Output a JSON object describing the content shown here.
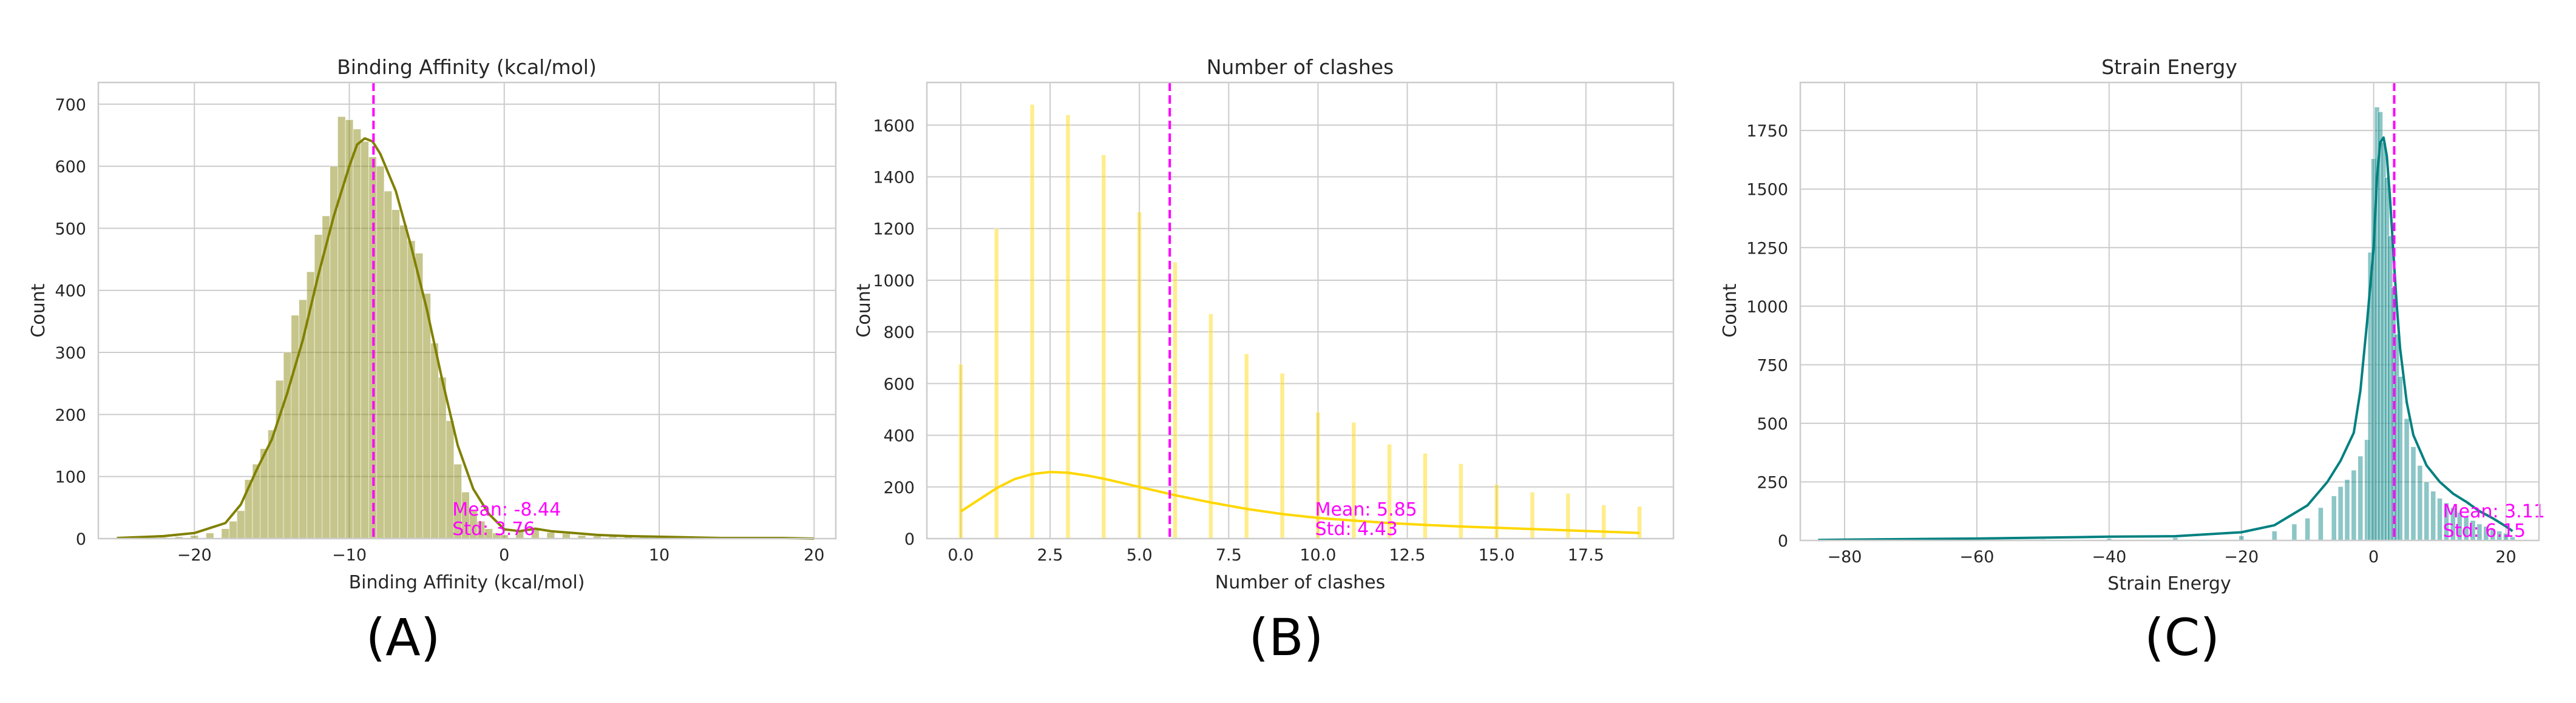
{
  "colors": {
    "mean_line": "#ff00ff",
    "grid": "#cccccc",
    "frame": "#cccccc",
    "text": "#262626"
  },
  "chart_data": [
    {
      "type": "histogram",
      "caption": "(A)",
      "title": "Binding Affinity (kcal/mol)",
      "xlabel": "Binding Affinity (kcal/mol)",
      "ylabel": "Count",
      "xlim": [
        -26.2,
        21.4
      ],
      "ylim": [
        0,
        735
      ],
      "xticks": [
        -20,
        -10,
        0,
        10,
        20
      ],
      "xtick_labels": [
        "−20",
        "−10",
        "0",
        "10",
        "20"
      ],
      "yticks": [
        0,
        100,
        200,
        300,
        400,
        500,
        600,
        700
      ],
      "ytick_labels": [
        "0",
        "100",
        "200",
        "300",
        "400",
        "500",
        "600",
        "700"
      ],
      "grid": true,
      "bar_color": "#808000",
      "kde_color": "#808000",
      "bins": {
        "centers": [
          -25,
          -24,
          -23,
          -22,
          -21,
          -20,
          -19,
          -18,
          -17.5,
          -17,
          -16.5,
          -16,
          -15.5,
          -15,
          -14.5,
          -14,
          -13.5,
          -13,
          -12.5,
          -12,
          -11.5,
          -11,
          -10.5,
          -10,
          -9.5,
          -9,
          -8.5,
          -8,
          -7.5,
          -7,
          -6.5,
          -6,
          -5.5,
          -5,
          -4.5,
          -4,
          -3.5,
          -3,
          -2.5,
          -2,
          -1.5,
          -1,
          -0.5,
          0,
          1,
          2,
          3,
          4,
          5,
          6,
          7,
          8,
          9,
          10,
          11,
          12,
          13,
          14,
          15,
          16,
          17,
          18,
          19,
          20
        ],
        "values": [
          1,
          1,
          1,
          2,
          3,
          5,
          9,
          16,
          28,
          45,
          95,
          120,
          145,
          175,
          255,
          300,
          360,
          385,
          430,
          490,
          520,
          600,
          680,
          675,
          660,
          640,
          615,
          600,
          560,
          530,
          505,
          480,
          460,
          395,
          315,
          260,
          190,
          120,
          75,
          45,
          28,
          16,
          9,
          6,
          12,
          14,
          10,
          8,
          5,
          4,
          3,
          3,
          2,
          2,
          2,
          1,
          1,
          1,
          1,
          1,
          1,
          1,
          1,
          1
        ],
        "width": 0.5
      },
      "kde": {
        "x": [
          -25,
          -22,
          -20,
          -18,
          -17,
          -16,
          -15,
          -14,
          -13,
          -12,
          -11,
          -10,
          -9.5,
          -9,
          -8.5,
          -8,
          -7,
          -6,
          -5,
          -4,
          -3,
          -2,
          -1,
          0,
          1,
          2,
          3,
          4,
          6,
          8,
          10,
          14,
          18,
          20
        ],
        "y": [
          1,
          4,
          9,
          25,
          55,
          110,
          160,
          235,
          320,
          425,
          520,
          600,
          635,
          645,
          640,
          620,
          560,
          470,
          370,
          255,
          150,
          80,
          40,
          15,
          12,
          16,
          12,
          10,
          6,
          4,
          3,
          1,
          1,
          0
        ]
      },
      "mean": -8.44,
      "mean_text": "Mean: -8.44",
      "std_text": "Std: 3.76"
    },
    {
      "type": "histogram",
      "caption": "(B)",
      "title": "Number of clashes",
      "xlabel": "Number of clashes",
      "ylabel": "Count",
      "xlim": [
        -0.95,
        19.95
      ],
      "ylim": [
        0,
        1765
      ],
      "xticks": [
        0.0,
        2.5,
        5.0,
        7.5,
        10.0,
        12.5,
        15.0,
        17.5
      ],
      "xtick_labels": [
        "0.0",
        "2.5",
        "5.0",
        "7.5",
        "10.0",
        "12.5",
        "15.0",
        "17.5"
      ],
      "yticks": [
        0,
        200,
        400,
        600,
        800,
        1000,
        1200,
        1400,
        1600
      ],
      "ytick_labels": [
        "0",
        "200",
        "400",
        "600",
        "800",
        "1000",
        "1200",
        "1400",
        "1600"
      ],
      "grid": true,
      "bar_color": "#ffd700",
      "kde_color": "#ffd700",
      "bins": {
        "centers": [
          0,
          1,
          2,
          3,
          4,
          5,
          6,
          7,
          8,
          9,
          10,
          11,
          12,
          13,
          14,
          15,
          16,
          17,
          18,
          19
        ],
        "values": [
          675,
          1200,
          1680,
          1640,
          1485,
          1265,
          1070,
          870,
          715,
          640,
          490,
          450,
          365,
          330,
          290,
          210,
          180,
          175,
          130,
          125
        ],
        "width": 0.12
      },
      "kde": {
        "x": [
          0,
          0.5,
          1,
          1.5,
          2,
          2.5,
          3,
          3.5,
          4,
          5,
          6,
          7,
          8,
          9,
          10,
          11,
          12,
          13,
          14,
          15,
          16,
          17,
          18,
          19
        ],
        "y": [
          105,
          150,
          195,
          230,
          250,
          258,
          255,
          245,
          232,
          200,
          168,
          140,
          115,
          95,
          80,
          70,
          60,
          53,
          47,
          42,
          37,
          32,
          27,
          22
        ]
      },
      "mean": 5.85,
      "mean_text": "Mean: 5.85",
      "std_text": "Std: 4.43"
    },
    {
      "type": "histogram",
      "caption": "(C)",
      "title": "Strain Energy",
      "xlabel": "Strain Energy",
      "ylabel": "Count",
      "xlim": [
        -86.7,
        25.0
      ],
      "ylim": [
        0,
        1955
      ],
      "xticks": [
        -80,
        -60,
        -40,
        -20,
        0,
        20
      ],
      "xtick_labels": [
        "−80",
        "−60",
        "−40",
        "−20",
        "0",
        "20"
      ],
      "yticks": [
        0,
        250,
        500,
        750,
        1000,
        1250,
        1500,
        1750
      ],
      "ytick_labels": [
        "0",
        "250",
        "500",
        "750",
        "1000",
        "1250",
        "1500",
        "1750"
      ],
      "grid": true,
      "bar_color": "#008080",
      "kde_color": "#008080",
      "bins": {
        "centers": [
          -82,
          -70,
          -60,
          -50,
          -40,
          -30,
          -20,
          -15,
          -12,
          -10,
          -8,
          -6,
          -5,
          -4,
          -3,
          -2,
          -1,
          -0.5,
          0,
          0.5,
          1,
          1.5,
          2,
          2.5,
          3,
          3.5,
          4,
          5,
          6,
          7,
          8,
          9,
          10,
          11,
          12,
          13,
          14,
          15,
          16,
          17,
          18,
          19,
          20,
          21
        ],
        "values": [
          3,
          2,
          3,
          5,
          8,
          12,
          20,
          40,
          70,
          95,
          140,
          190,
          230,
          260,
          300,
          360,
          430,
          1230,
          1630,
          1850,
          1830,
          1700,
          1550,
          1300,
          1080,
          880,
          700,
          520,
          400,
          320,
          250,
          210,
          180,
          160,
          140,
          120,
          100,
          85,
          70,
          60,
          50,
          40,
          30,
          15
        ],
        "width": 0.75
      },
      "kde": {
        "x": [
          -84,
          -70,
          -60,
          -50,
          -40,
          -30,
          -20,
          -15,
          -10,
          -7,
          -5,
          -3,
          -2,
          -1,
          0,
          0.5,
          1,
          1.5,
          2,
          2.5,
          3,
          3.5,
          4,
          5,
          6,
          8,
          10,
          12,
          14,
          16,
          18,
          20,
          21
        ],
        "y": [
          2,
          6,
          8,
          12,
          16,
          18,
          35,
          65,
          150,
          250,
          340,
          460,
          640,
          930,
          1250,
          1550,
          1700,
          1720,
          1640,
          1450,
          1220,
          1000,
          820,
          590,
          450,
          320,
          250,
          200,
          165,
          125,
          95,
          60,
          40
        ]
      },
      "mean": 3.11,
      "mean_text": "Mean: 3.11",
      "std_text": "Std: 6.15"
    }
  ]
}
